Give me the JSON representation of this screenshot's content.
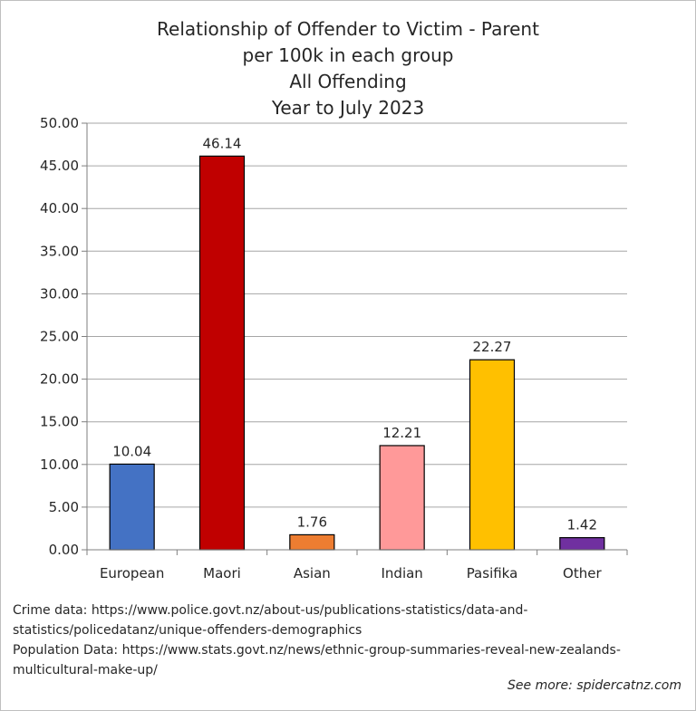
{
  "chart_data": {
    "type": "bar",
    "title": [
      "Relationship of Offender to Victim - Parent",
      "per 100k in each group",
      "All Offending",
      "Year to July 2023"
    ],
    "categories": [
      "European",
      "Maori",
      "Asian",
      "Indian",
      "Pasifika",
      "Other"
    ],
    "values": [
      10.04,
      46.14,
      1.76,
      12.21,
      22.27,
      1.42
    ],
    "value_labels": [
      "10.04",
      "46.14",
      "1.76",
      "12.21",
      "22.27",
      "1.42"
    ],
    "colors": [
      "#4472c4",
      "#c00000",
      "#ed7d31",
      "#ff9999",
      "#ffc000",
      "#7030a0"
    ],
    "ylim": [
      0,
      50
    ],
    "yticks": [
      "0.00",
      "5.00",
      "10.00",
      "15.00",
      "20.00",
      "25.00",
      "30.00",
      "35.00",
      "40.00",
      "45.00",
      "50.00"
    ],
    "xlabel": "",
    "ylabel": "",
    "grid": true,
    "legend": "none"
  },
  "notes": {
    "line1": "Crime data: https://www.police.govt.nz/about-us/publications-statistics/data-and-",
    "line2": "statistics/policedatanz/unique-offenders-demographics",
    "line3": "Population Data: https://www.stats.govt.nz/news/ethnic-group-summaries-reveal-new-zealands-",
    "line4": "multicultural-make-up/"
  },
  "see_more": "See more: spidercatnz.com"
}
